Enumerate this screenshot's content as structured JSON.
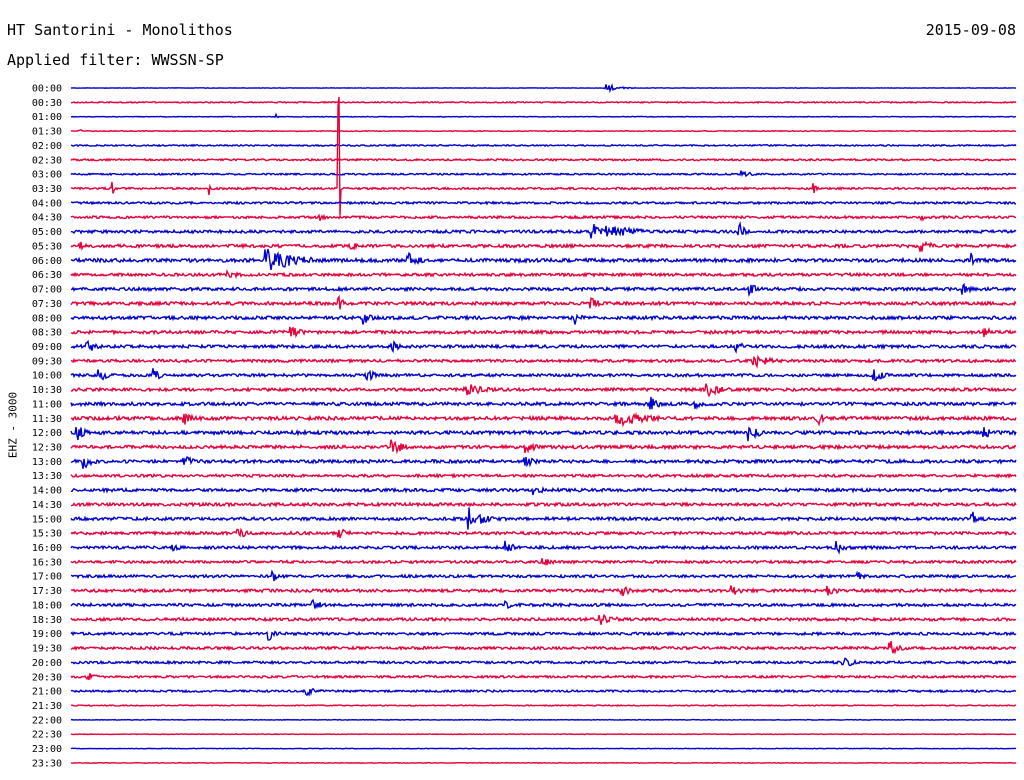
{
  "header": {
    "station": "HT Santorini - Monolithos",
    "date": "2015-09-08",
    "filter": "Applied filter: WWSSN-SP"
  },
  "chart_data": {
    "type": "line",
    "title": "HT Santorini - Monolithos",
    "subtitle": "Applied filter: WWSSN-SP",
    "date": "2015-09-08",
    "ylabel": "EHZ - 3000",
    "xlabel": "",
    "row_labels": [
      "00:00",
      "00:30",
      "01:00",
      "01:30",
      "02:00",
      "02:30",
      "03:00",
      "03:30",
      "04:00",
      "04:30",
      "05:00",
      "05:30",
      "06:00",
      "06:30",
      "07:00",
      "07:30",
      "08:00",
      "08:30",
      "09:00",
      "09:30",
      "10:00",
      "10:30",
      "11:00",
      "11:30",
      "12:00",
      "12:30",
      "13:00",
      "13:30",
      "14:00",
      "14:30",
      "15:00",
      "15:30",
      "16:00",
      "16:30",
      "17:00",
      "17:30",
      "18:00",
      "18:30",
      "19:00",
      "19:30",
      "20:00",
      "20:30",
      "21:00",
      "21:30",
      "22:00",
      "22:30",
      "23:00",
      "23:30"
    ],
    "row_minutes": 30,
    "colors": [
      "#0000d0",
      "#e8003a"
    ],
    "grid": false,
    "noise_levels": [
      0.2,
      0.6,
      0.3,
      0.4,
      0.7,
      0.9,
      0.8,
      1.0,
      1.1,
      1.2,
      1.4,
      1.5,
      1.7,
      1.4,
      1.5,
      1.6,
      1.6,
      1.5,
      1.5,
      1.4,
      1.4,
      1.5,
      1.6,
      1.7,
      1.7,
      1.6,
      1.6,
      1.3,
      1.5,
      1.5,
      1.5,
      1.4,
      1.4,
      1.3,
      1.3,
      1.5,
      1.4,
      1.4,
      1.3,
      1.3,
      1.2,
      1.1,
      1.0,
      0.5,
      0.3,
      0.3,
      0.3,
      0.3
    ],
    "events": [
      {
        "row": 0,
        "minute": 17.0,
        "amplitude": 4,
        "duration_min": 1.2
      },
      {
        "row": 2,
        "minute": 6.5,
        "amplitude": 3,
        "duration_min": 0.2
      },
      {
        "row": 3,
        "minute": 0.3,
        "amplitude": 2,
        "duration_min": 0.2
      },
      {
        "row": 6,
        "minute": 21.3,
        "amplitude": 4,
        "duration_min": 1.0
      },
      {
        "row": 7,
        "minute": 1.3,
        "amplitude": 9,
        "duration_min": 0.2
      },
      {
        "row": 7,
        "minute": 4.4,
        "amplitude": 8,
        "duration_min": 0.2
      },
      {
        "row": 7,
        "minute": 23.6,
        "amplitude": 7,
        "duration_min": 0.2
      },
      {
        "row": 7,
        "minute": 8.5,
        "amplitude": 120,
        "duration_min": 0.1
      },
      {
        "row": 9,
        "minute": 7.9,
        "amplitude": 4,
        "duration_min": 0.6
      },
      {
        "row": 9,
        "minute": 27.0,
        "amplitude": 8,
        "duration_min": 0.2
      },
      {
        "row": 10,
        "minute": 16.5,
        "amplitude": 10,
        "duration_min": 3.5
      },
      {
        "row": 10,
        "minute": 21.2,
        "amplitude": 10,
        "duration_min": 0.6
      },
      {
        "row": 11,
        "minute": 0.3,
        "amplitude": 8,
        "duration_min": 0.2
      },
      {
        "row": 11,
        "minute": 8.9,
        "amplitude": 6,
        "duration_min": 1.0
      },
      {
        "row": 11,
        "minute": 27.0,
        "amplitude": 7,
        "duration_min": 1.0
      },
      {
        "row": 12,
        "minute": 6.2,
        "amplitude": 12,
        "duration_min": 3.0
      },
      {
        "row": 12,
        "minute": 10.7,
        "amplitude": 8,
        "duration_min": 1.2
      },
      {
        "row": 12,
        "minute": 28.6,
        "amplitude": 10,
        "duration_min": 0.2
      },
      {
        "row": 13,
        "minute": 5.0,
        "amplitude": 5,
        "duration_min": 1.2
      },
      {
        "row": 14,
        "minute": 21.5,
        "amplitude": 6,
        "duration_min": 1.0
      },
      {
        "row": 14,
        "minute": 28.3,
        "amplitude": 6,
        "duration_min": 0.8
      },
      {
        "row": 15,
        "minute": 8.5,
        "amplitude": 8,
        "duration_min": 0.7
      },
      {
        "row": 15,
        "minute": 16.5,
        "amplitude": 7,
        "duration_min": 0.8
      },
      {
        "row": 16,
        "minute": 9.3,
        "amplitude": 7,
        "duration_min": 0.7
      },
      {
        "row": 16,
        "minute": 16.0,
        "amplitude": 7,
        "duration_min": 0.8
      },
      {
        "row": 17,
        "minute": 7.0,
        "amplitude": 6,
        "duration_min": 1.0
      },
      {
        "row": 17,
        "minute": 29.0,
        "amplitude": 6,
        "duration_min": 0.6
      },
      {
        "row": 18,
        "minute": 0.5,
        "amplitude": 7,
        "duration_min": 1.0
      },
      {
        "row": 18,
        "minute": 10.2,
        "amplitude": 6,
        "duration_min": 0.8
      },
      {
        "row": 18,
        "minute": 21.1,
        "amplitude": 6,
        "duration_min": 0.8
      },
      {
        "row": 19,
        "minute": 21.7,
        "amplitude": 7,
        "duration_min": 1.5
      },
      {
        "row": 20,
        "minute": 0.9,
        "amplitude": 7,
        "duration_min": 0.8
      },
      {
        "row": 20,
        "minute": 2.6,
        "amplitude": 7,
        "duration_min": 0.8
      },
      {
        "row": 20,
        "minute": 9.4,
        "amplitude": 7,
        "duration_min": 0.8
      },
      {
        "row": 20,
        "minute": 25.5,
        "amplitude": 7,
        "duration_min": 1.0
      },
      {
        "row": 21,
        "minute": 12.5,
        "amplitude": 7,
        "duration_min": 2.0
      },
      {
        "row": 21,
        "minute": 20.2,
        "amplitude": 7,
        "duration_min": 1.5
      },
      {
        "row": 22,
        "minute": 18.4,
        "amplitude": 8,
        "duration_min": 0.8
      },
      {
        "row": 22,
        "minute": 19.8,
        "amplitude": 7,
        "duration_min": 0.8
      },
      {
        "row": 23,
        "minute": 3.6,
        "amplitude": 7,
        "duration_min": 0.8
      },
      {
        "row": 23,
        "minute": 17.3,
        "amplitude": 10,
        "duration_min": 2.5
      },
      {
        "row": 23,
        "minute": 23.7,
        "amplitude": 8,
        "duration_min": 0.7
      },
      {
        "row": 24,
        "minute": 0.2,
        "amplitude": 8,
        "duration_min": 0.8
      },
      {
        "row": 24,
        "minute": 21.5,
        "amplitude": 9,
        "duration_min": 1.0
      },
      {
        "row": 24,
        "minute": 29.0,
        "amplitude": 7,
        "duration_min": 0.6
      },
      {
        "row": 25,
        "minute": 10.2,
        "amplitude": 8,
        "duration_min": 1.5
      },
      {
        "row": 25,
        "minute": 14.4,
        "amplitude": 7,
        "duration_min": 1.0
      },
      {
        "row": 26,
        "minute": 0.4,
        "amplitude": 8,
        "duration_min": 1.0
      },
      {
        "row": 26,
        "minute": 3.6,
        "amplitude": 7,
        "duration_min": 0.8
      },
      {
        "row": 26,
        "minute": 14.4,
        "amplitude": 6,
        "duration_min": 1.0
      },
      {
        "row": 28,
        "minute": 14.7,
        "amplitude": 6,
        "duration_min": 0.8
      },
      {
        "row": 30,
        "minute": 12.6,
        "amplitude": 14,
        "duration_min": 1.2
      },
      {
        "row": 30,
        "minute": 28.6,
        "amplitude": 8,
        "duration_min": 0.8
      },
      {
        "row": 31,
        "minute": 5.3,
        "amplitude": 6,
        "duration_min": 1.0
      },
      {
        "row": 31,
        "minute": 8.5,
        "amplitude": 6,
        "duration_min": 1.0
      },
      {
        "row": 32,
        "minute": 3.2,
        "amplitude": 6,
        "duration_min": 0.6
      },
      {
        "row": 32,
        "minute": 13.8,
        "amplitude": 7,
        "duration_min": 0.8
      },
      {
        "row": 32,
        "minute": 24.3,
        "amplitude": 7,
        "duration_min": 1.0
      },
      {
        "row": 33,
        "minute": 15.0,
        "amplitude": 6,
        "duration_min": 0.8
      },
      {
        "row": 34,
        "minute": 6.4,
        "amplitude": 6,
        "duration_min": 1.0
      },
      {
        "row": 34,
        "minute": 25.0,
        "amplitude": 5,
        "duration_min": 0.6
      },
      {
        "row": 35,
        "minute": 17.5,
        "amplitude": 6,
        "duration_min": 0.8
      },
      {
        "row": 35,
        "minute": 21.0,
        "amplitude": 6,
        "duration_min": 0.8
      },
      {
        "row": 35,
        "minute": 24.0,
        "amplitude": 6,
        "duration_min": 1.0
      },
      {
        "row": 36,
        "minute": 7.7,
        "amplitude": 5,
        "duration_min": 1.0
      },
      {
        "row": 36,
        "minute": 13.8,
        "amplitude": 5,
        "duration_min": 0.6
      },
      {
        "row": 37,
        "minute": 16.8,
        "amplitude": 6,
        "duration_min": 1.5
      },
      {
        "row": 38,
        "minute": 6.3,
        "amplitude": 7,
        "duration_min": 0.7
      },
      {
        "row": 39,
        "minute": 26.0,
        "amplitude": 8,
        "duration_min": 1.0
      },
      {
        "row": 40,
        "minute": 24.5,
        "amplitude": 8,
        "duration_min": 0.8
      },
      {
        "row": 41,
        "minute": 0.5,
        "amplitude": 5,
        "duration_min": 1.2
      },
      {
        "row": 42,
        "minute": 7.5,
        "amplitude": 5,
        "duration_min": 1.0
      }
    ]
  }
}
